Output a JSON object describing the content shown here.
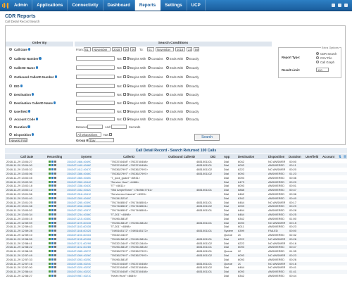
{
  "nav": {
    "items": [
      "Admin",
      "Applications",
      "Connectivity",
      "Dashboard",
      "Reports",
      "Settings",
      "UCP"
    ],
    "active_index": 4
  },
  "page": {
    "title": "CDR Reports",
    "search_legend": "Call Detail Record Search"
  },
  "order_by_header": "Order By",
  "conditions_header": "Search Conditions",
  "date_row": {
    "from_label": "From:",
    "from_day": "01",
    "from_month": "November",
    "from_year": "2018",
    "from_hour": "00",
    "from_min": "00",
    "to_label": "To:",
    "to_day": "01",
    "to_month": "November",
    "to_year": "2018",
    "to_hour": "23",
    "to_min": "59"
  },
  "filter_rows": [
    {
      "label": "CallerID Number"
    },
    {
      "label": "CallerID Name"
    },
    {
      "label": "Outbound CallerID Number"
    },
    {
      "label": "DID"
    },
    {
      "label": "Destination"
    },
    {
      "label": "Destination CallerID Name"
    },
    {
      "label": "Userfield"
    },
    {
      "label": "Account Code"
    }
  ],
  "call_date_label": "Call Date",
  "match_options": {
    "not": "Not:",
    "begins": "Begins With",
    "contains": "Contains",
    "ends": "Ends With",
    "exactly": "Exactly"
  },
  "duration": {
    "label": "Duration",
    "between": "Between:",
    "and": "And:",
    "unit": "Seconds"
  },
  "disposition": {
    "label": "Disposition",
    "value": "All Dispositions",
    "not": "Not:"
  },
  "newest_first": "Newest First",
  "group_by": {
    "label": "Group By:",
    "value": "Day"
  },
  "extra_options": {
    "legend": "Extra Options",
    "report_type_label": "Report Type:",
    "report_types": [
      "CDR Search",
      "CSV File",
      "Call Graph"
    ],
    "result_limit_label": "Result Limit:",
    "result_limit": "100"
  },
  "search_button": "Search",
  "results_title": "Call Detail Record - Search Returned 100 Calls",
  "columns": [
    "Call Date",
    "Recording",
    "System",
    "CallerID",
    "Outbound CallerID",
    "DID",
    "App",
    "Destination",
    "Disposition",
    "Duration",
    "Userfield",
    "Account"
  ],
  "rows": [
    [
      "2018-11-29 13:04:27",
      "1543471466.40490",
      "\"7923740408\" <7923740408>",
      "4851001101",
      "Dial",
      "6042",
      "NO ANSWER",
      "00:00"
    ],
    [
      "2018-11-29 13:04:00",
      "1543471440.40480",
      "\"7923740408\" <7923740408>",
      "4851001101",
      "Dial",
      "6093",
      "ANSWERED",
      "00:11"
    ],
    [
      "2018-11-29 13:03:32",
      "1543471412.40470",
      "\"7923627997\" <7923627997>",
      "4851001102",
      "Dial",
      "6222",
      "NO ANSWER",
      "00:20"
    ],
    [
      "2018-11-29 13:03:06",
      "1543471386.40460",
      "\"7923627997\" <7923627997>",
      "4851001102",
      "Dial",
      "6093",
      "ANSWERED",
      "01:23"
    ],
    [
      "2018-11-29 13:02:45",
      "1543471365.40450",
      "\"7_pool_guard\" <6941>",
      "",
      "Dial",
      "6093",
      "ANSWERED",
      "00:36"
    ],
    [
      "2018-11-29 13:02:30",
      "1543471350.40440",
      "\"Service Hour\" <6468>",
      "",
      "Dial",
      "6473",
      "ANSWERED",
      "00:20"
    ],
    [
      "2018-11-29 13:02:18",
      "1543471338.40430",
      "\"IT\" <6611>",
      "",
      "Dial",
      "6093",
      "ANSWERED",
      "00:01"
    ],
    [
      "2018-11-29 13:02:12",
      "1543471332.40420",
      "\"954 AmpleTeam\" <7469847761>",
      "4851001101",
      "Dial",
      "6888",
      "ANSWERED",
      "00:47"
    ],
    [
      "2018-11-29 13:01:56",
      "1543471316.40410",
      "\"Servicemo Kaserel\" <6993>",
      "",
      "Dial",
      "6462",
      "ANSWERED",
      "00:36"
    ],
    [
      "2018-11-29 13:01:40",
      "1543471300.40400",
      "\"7913415234\"",
      "",
      "Dial",
      "6342",
      "ANSWERED",
      "00:40"
    ],
    [
      "2018-11-29 13:01:25",
      "1543471285.40390",
      "\"7917408501\" <7917408501>",
      "4851001101",
      "Dial",
      "6464",
      "NO ANSWER",
      "00:17"
    ],
    [
      "2018-11-29 13:01:08",
      "1543471268.40380",
      "\"7917408501\" <7917408501>",
      "4851001102",
      "Dial",
      "6093",
      "ANSWERED",
      "00:29"
    ],
    [
      "2018-11-29 13:00:52",
      "1543471252.40370",
      "\"7917408501\" <7917408501>",
      "4851001101",
      "Dial",
      "6464",
      "ANSWERED",
      "00:28"
    ],
    [
      "2018-11-29 13:00:34",
      "1543471234.40360",
      "\"IT-201\" <6598>",
      "",
      "Dial",
      "6464",
      "ANSWERED",
      "00:25"
    ],
    [
      "2018-11-29 13:00:15",
      "1543471215.40350",
      "\"7919615818\"",
      "",
      "Dial",
      "6342",
      "ANSWERED",
      "01:00"
    ],
    [
      "2018-11-29 12:59:59",
      "1543471199.40340",
      "\"7919615818\" <7919615818>",
      "4851001101",
      "Dial",
      "6093",
      "NO ANSWER",
      "00:15"
    ],
    [
      "2018-11-29 12:59:43",
      "1543471183.40330",
      "\"IT-201\" <6598>",
      "",
      "Dial",
      "6011",
      "ANSWERED",
      "00:23"
    ],
    [
      "2018-11-29 12:59:28",
      "1543471168.40320",
      "\"7495165172\" <7495165172>",
      "4851001101",
      "System",
      "6399",
      "FAILED",
      "00:00"
    ],
    [
      "2018-11-29 12:59:10",
      "1543471150.40310",
      "\"7923213449\"",
      "",
      "Queue",
      "20",
      "ANSWERED",
      "02:32"
    ],
    [
      "2018-11-29 12:58:55",
      "1543471135.40300",
      "\"7919615818\" <7919615818>",
      "4851001101",
      "Dial",
      "6222",
      "NO ANSWER",
      "00:26"
    ],
    [
      "2018-11-29 12:58:41",
      "1543471121.40290",
      "\"7923213449\" <7923213449>",
      "4851001102",
      "Dial",
      "6222",
      "NO ANSWER",
      "00:16"
    ],
    [
      "2018-11-29 12:58:22",
      "1543471102.40280",
      "\"7919615818\" <7919615818>",
      "4851001101",
      "Dial",
      "6093",
      "ANSWERED",
      "00:47"
    ],
    [
      "2018-11-29 12:58:05",
      "1543471085.40270",
      "\"7923627997\" <7923627997>",
      "4851001101",
      "Queue",
      "20",
      "ANSWERED",
      "01:35"
    ],
    [
      "2018-11-29 12:57:49",
      "1543471069.40260",
      "\"7923627997\" <7923627997>",
      "4851001102",
      "Dial",
      "6093",
      "NO ANSWER",
      "00:23"
    ],
    [
      "2018-11-29 12:57:33",
      "1543471053.40250",
      "\"7919615818\"",
      "",
      "Dial",
      "6093",
      "ANSWERED",
      "00:26"
    ],
    [
      "2018-11-29 12:57:16",
      "1543471036.40240",
      "\"7923740408\" <7923740408>",
      "4851001101",
      "Queue",
      "20",
      "NO ANSWER",
      "00:16"
    ],
    [
      "2018-11-29 12:57:00",
      "1543471020.40230",
      "\"7923740408\" <7923740408>",
      "4851001102",
      "Dial",
      "6464",
      "NO ANSWER",
      "00:41"
    ],
    [
      "2018-11-29 12:56:44",
      "1543471004.40220",
      "\"7923740408\" <7923740408>",
      "4851001101",
      "Dial",
      "6093",
      "ANSWERED",
      "01:41"
    ],
    [
      "2018-11-29 12:56:27",
      "1543470987.40210",
      "\"Kevin Hunt\" <6649>",
      "",
      "Dial",
      "6342",
      "ANSWERED",
      "00:44"
    ]
  ]
}
